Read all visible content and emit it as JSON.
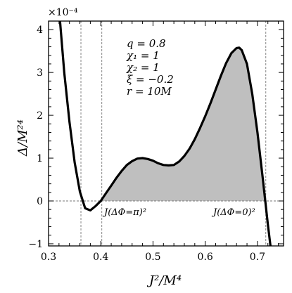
{
  "chart_data": {
    "type": "area",
    "xlabel": "J²/M⁴",
    "ylabel": "Δ/M²⁴",
    "y_scale_label": "×10⁻⁴",
    "xlim": [
      0.3,
      0.75
    ],
    "ylim": [
      -1.05,
      4.2
    ],
    "x_ticks": [
      0.3,
      0.4,
      0.5,
      0.6,
      0.7
    ],
    "x_tick_labels": [
      "0.3",
      "0.4",
      "0.5",
      "0.6",
      "0.7"
    ],
    "y_ticks": [
      -1,
      0,
      1,
      2,
      3,
      4
    ],
    "y_tick_labels": [
      "−1",
      "0",
      "1",
      "2",
      "3",
      "4"
    ],
    "series": [
      {
        "x": [
          0.322,
          0.33,
          0.34,
          0.35,
          0.36,
          0.37,
          0.38,
          0.39,
          0.4,
          0.41,
          0.42,
          0.43,
          0.44,
          0.45,
          0.46,
          0.47,
          0.48,
          0.49,
          0.5,
          0.51,
          0.52,
          0.53,
          0.54,
          0.55,
          0.56,
          0.57,
          0.58,
          0.59,
          0.6,
          0.61,
          0.62,
          0.63,
          0.64,
          0.65,
          0.66,
          0.665,
          0.67,
          0.68,
          0.69,
          0.7,
          0.71,
          0.715,
          0.72,
          0.725
        ],
        "values": [
          4.2,
          3.0,
          1.85,
          0.9,
          0.22,
          -0.17,
          -0.22,
          -0.12,
          0.0,
          0.18,
          0.36,
          0.54,
          0.7,
          0.84,
          0.93,
          0.99,
          1.0,
          0.98,
          0.94,
          0.88,
          0.84,
          0.83,
          0.84,
          0.92,
          1.05,
          1.22,
          1.44,
          1.7,
          1.98,
          2.28,
          2.6,
          2.92,
          3.22,
          3.45,
          3.57,
          3.58,
          3.52,
          3.2,
          2.5,
          1.6,
          0.55,
          0.0,
          -0.55,
          -1.05
        ]
      }
    ],
    "shaded_region": {
      "x_from": 0.4,
      "x_to": 0.715,
      "fill": "#bfbfbf"
    },
    "vertical_lines": [
      0.362,
      0.402,
      0.716
    ],
    "zero_line": true,
    "annotations": {
      "params": [
        "q = 0.8",
        "χ₁ = 1",
        "χ₂ = 1",
        "ξ = −0.2",
        "r = 10M"
      ],
      "label_pi": "J(ΔΦ=π)²",
      "label_zero": "J(ΔΦ=0)²"
    },
    "colors": {
      "curve": "#000000",
      "fill": "#bfbfbf",
      "guide": "#777777"
    }
  }
}
